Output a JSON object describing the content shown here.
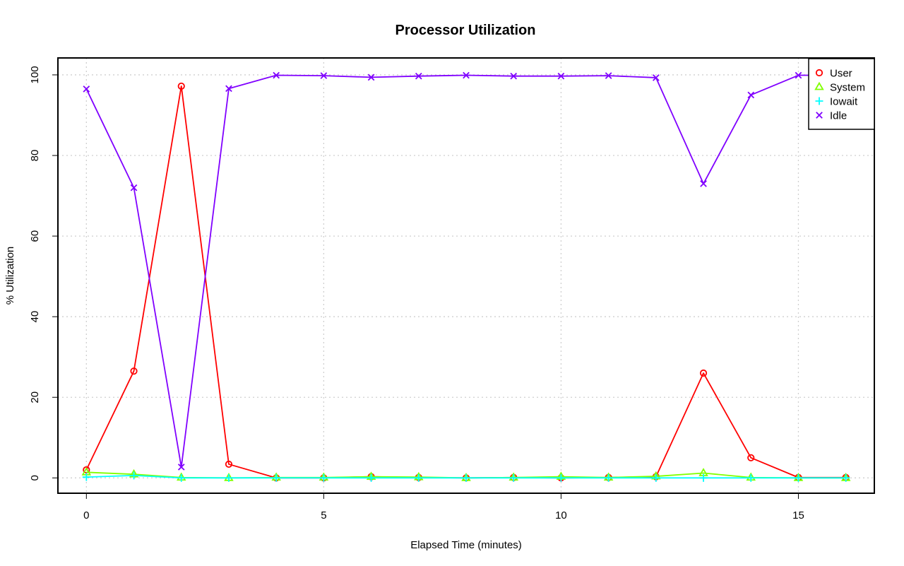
{
  "chart_data": {
    "type": "line",
    "title": "Processor Utilization",
    "xlabel": "Elapsed Time (minutes)",
    "ylabel": "% Utilization",
    "xlim": [
      -0.6,
      16.6
    ],
    "ylim": [
      -3.8,
      104.2
    ],
    "x_ticks": [
      0,
      5,
      10,
      15
    ],
    "y_ticks": [
      0,
      20,
      40,
      60,
      80,
      100
    ],
    "grid": true,
    "legend_position": "top-right",
    "x": [
      0,
      1,
      2,
      3,
      4,
      5,
      6,
      7,
      8,
      9,
      10,
      11,
      12,
      13,
      14,
      15,
      16
    ],
    "series": [
      {
        "name": "User",
        "color": "#ff0000",
        "marker": "circle",
        "values": [
          2.0,
          26.5,
          97.2,
          3.4,
          0.0,
          0.0,
          0.3,
          0.1,
          0.0,
          0.1,
          0.0,
          0.1,
          0.3,
          26.0,
          5.0,
          0.1,
          0.1
        ]
      },
      {
        "name": "System",
        "color": "#80ff00",
        "marker": "triangle",
        "values": [
          1.4,
          0.9,
          0.1,
          0.0,
          0.1,
          0.1,
          0.3,
          0.2,
          0.0,
          0.1,
          0.3,
          0.1,
          0.4,
          1.2,
          0.1,
          0.0,
          0.0
        ]
      },
      {
        "name": "Iowait",
        "color": "#00ffff",
        "marker": "plus",
        "values": [
          0.2,
          0.6,
          0.0,
          0.0,
          0.0,
          0.0,
          0.0,
          0.0,
          0.0,
          0.0,
          0.0,
          0.0,
          0.0,
          0.0,
          0.0,
          0.0,
          0.0
        ]
      },
      {
        "name": "Idle",
        "color": "#8000ff",
        "marker": "cross",
        "values": [
          96.5,
          72.0,
          2.7,
          96.6,
          99.9,
          99.8,
          99.4,
          99.7,
          99.9,
          99.7,
          99.7,
          99.8,
          99.3,
          73.0,
          95.0,
          99.9,
          99.9
        ]
      }
    ]
  }
}
